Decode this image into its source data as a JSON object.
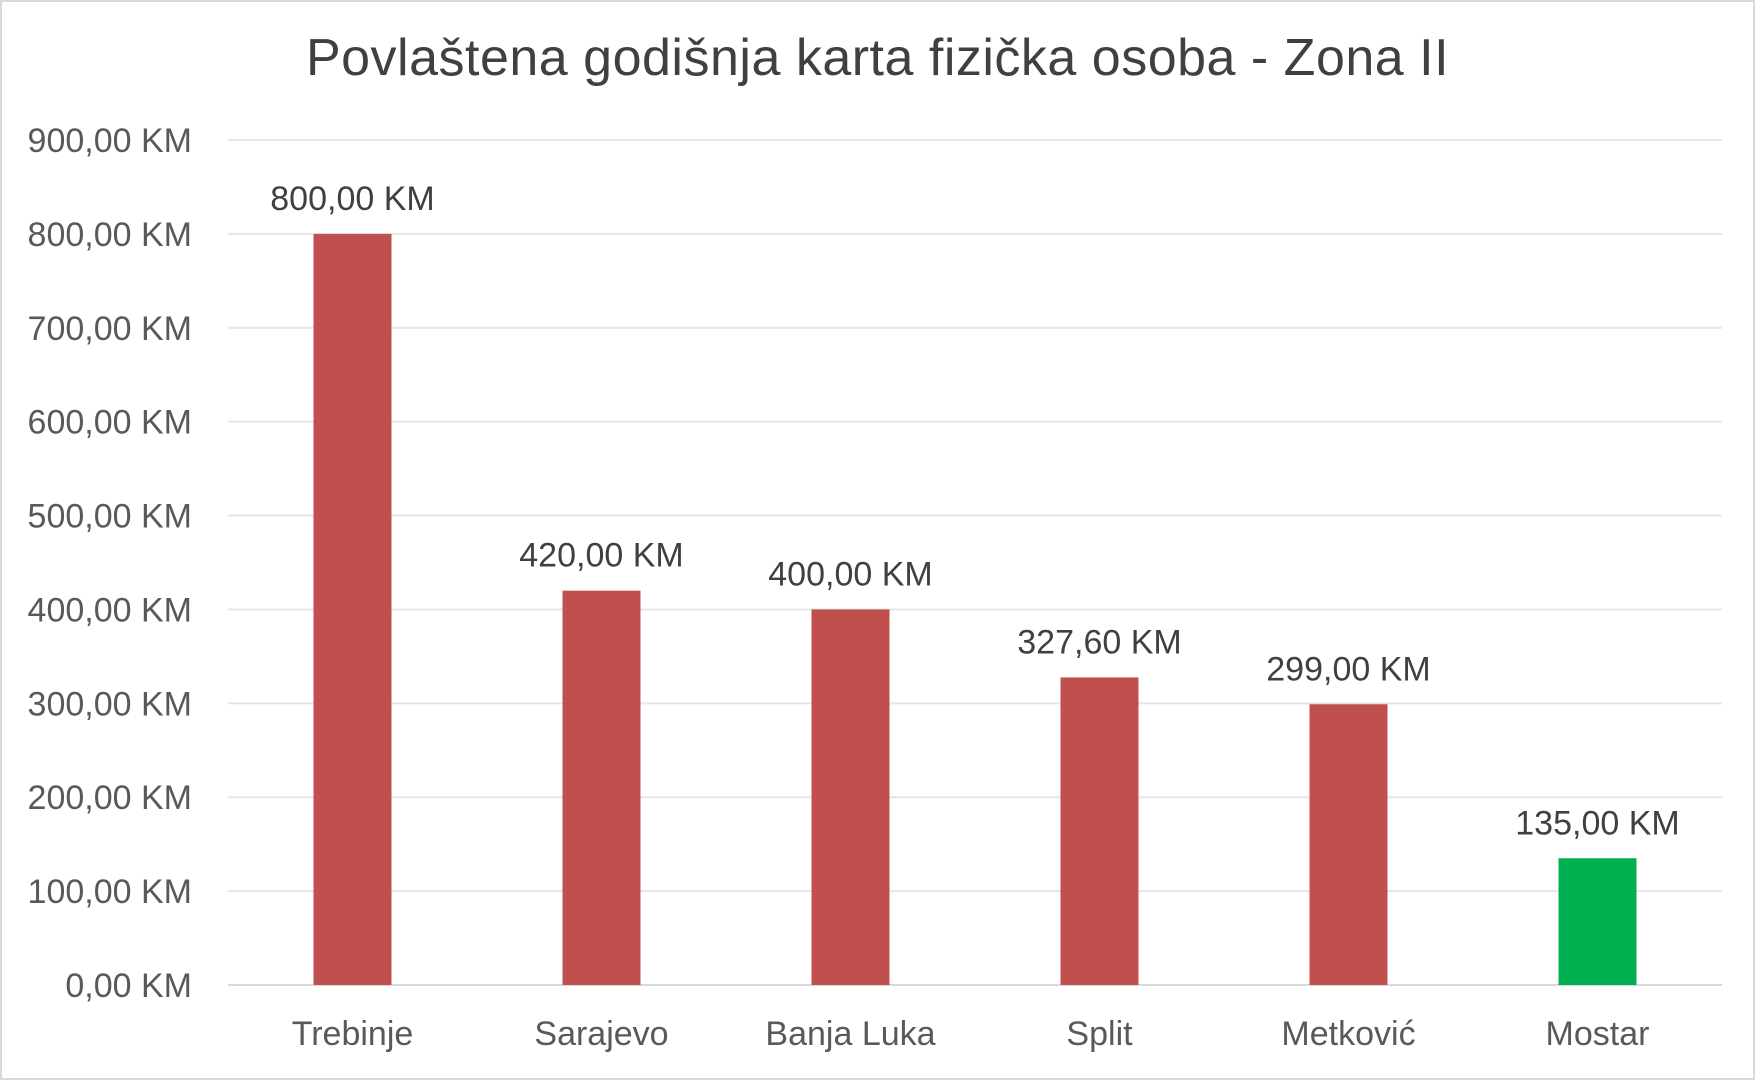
{
  "chart_data": {
    "type": "bar",
    "title": "Povlaštena godišnja karta fizička osoba - Zona II",
    "xlabel": "",
    "ylabel": "",
    "ylim": [
      0,
      900
    ],
    "ytick_step": 100,
    "ytick_labels": [
      "0,00 KM",
      "100,00 KM",
      "200,00 KM",
      "300,00 KM",
      "400,00 KM",
      "500,00 KM",
      "600,00 KM",
      "700,00 KM",
      "800,00 KM",
      "900,00 KM"
    ],
    "categories": [
      "Trebinje",
      "Sarajevo",
      "Banja Luka",
      "Split",
      "Metković",
      "Mostar"
    ],
    "values": [
      800,
      420,
      400,
      327.6,
      299,
      135
    ],
    "data_labels": [
      "800,00 KM",
      "420,00 KM",
      "400,00 KM",
      "327,60 KM",
      "299,00 KM",
      "135,00 KM"
    ],
    "bar_colors": [
      "#c0504d",
      "#c0504d",
      "#c0504d",
      "#c0504d",
      "#c0504d",
      "#00b050"
    ],
    "grid": true,
    "legend": "none"
  }
}
